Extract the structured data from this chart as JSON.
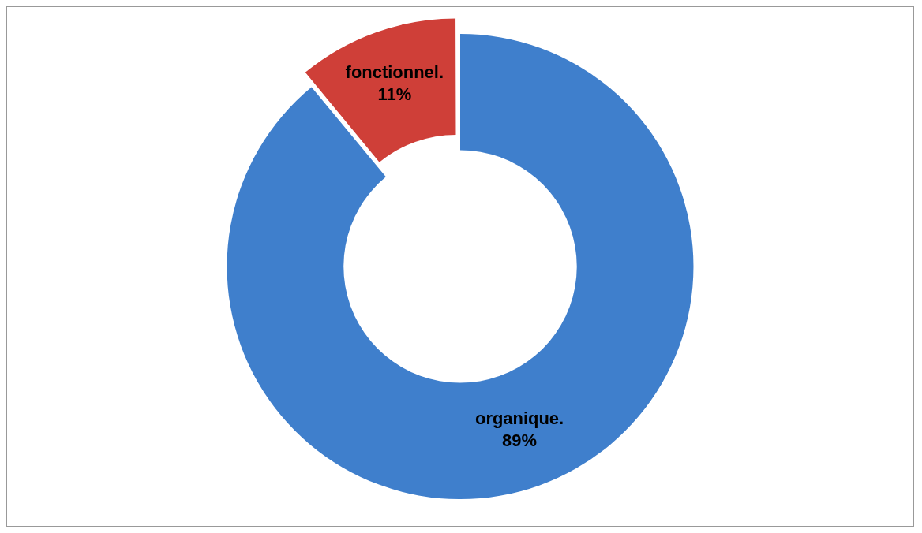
{
  "chart_data": {
    "type": "donut",
    "categories": [
      "organique.",
      "fonctionnel."
    ],
    "values": [
      89,
      11
    ],
    "colors": [
      "#3f7fcc",
      "#cf3f38"
    ],
    "value_labels": [
      "89%",
      "11%"
    ],
    "legend": false
  }
}
